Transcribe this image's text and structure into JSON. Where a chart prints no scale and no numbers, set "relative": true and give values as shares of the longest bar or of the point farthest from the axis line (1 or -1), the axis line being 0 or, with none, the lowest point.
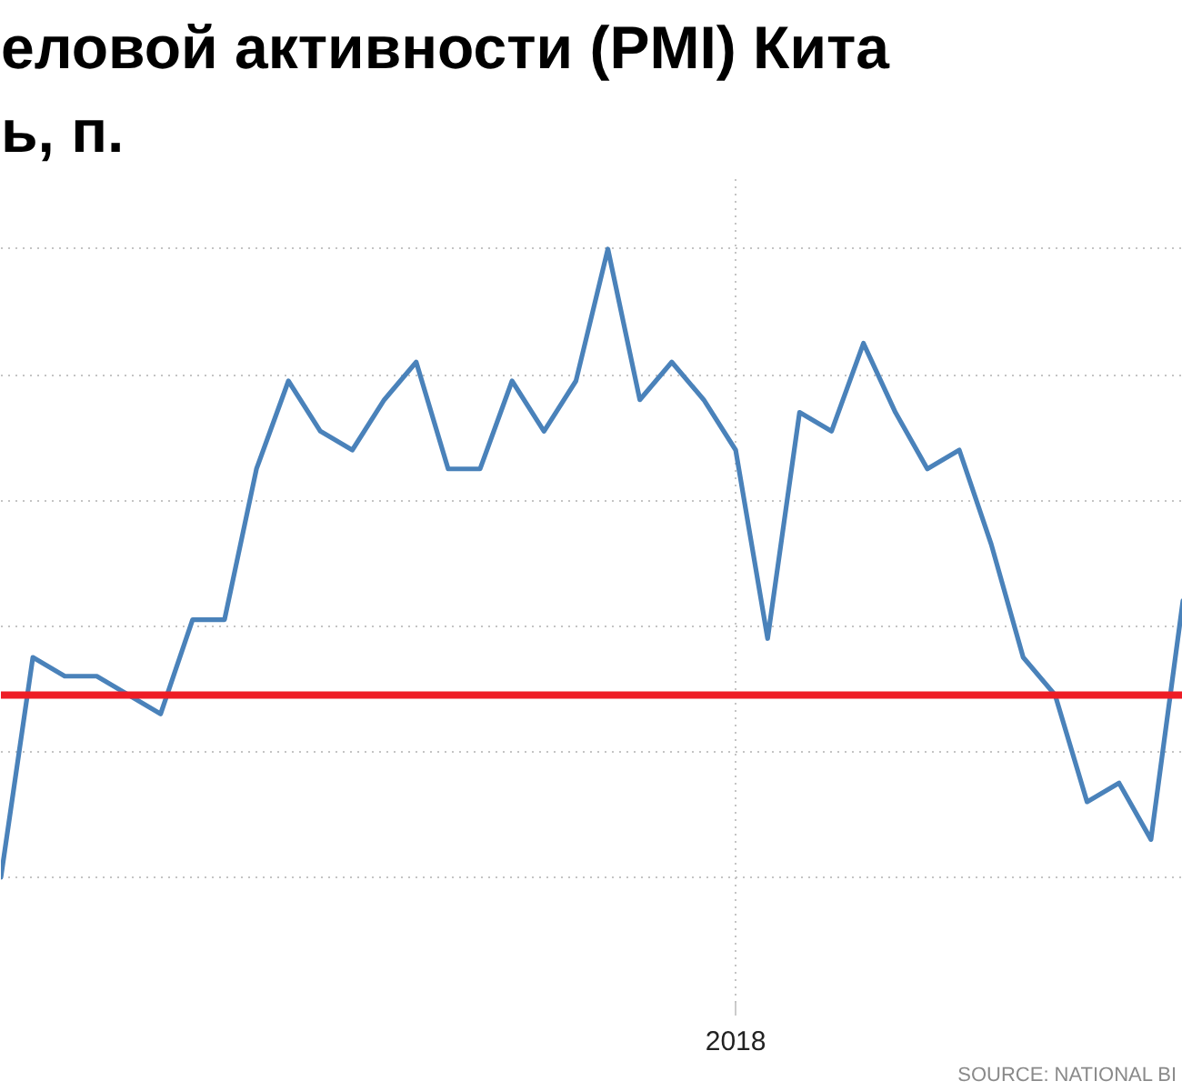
{
  "chart_data": {
    "type": "line",
    "title": "еловой активности (PMI) Кита\nь, п.",
    "categories": [
      null,
      null,
      null,
      null,
      null,
      null,
      null,
      null,
      null,
      null,
      null,
      null,
      null,
      null,
      null,
      null,
      null,
      null,
      null,
      null,
      null,
      null,
      null,
      null,
      null,
      null,
      null,
      null,
      null,
      null,
      null,
      null,
      null,
      null,
      null,
      null,
      null,
      null
    ],
    "values": [
      0,
      0.35,
      0.32,
      0.32,
      0.29,
      0.26,
      0.41,
      0.41,
      0.65,
      0.79,
      0.71,
      0.68,
      0.76,
      0.82,
      0.65,
      0.65,
      0.79,
      0.71,
      0.79,
      1,
      0.76,
      0.82,
      0.76,
      0.68,
      0.38,
      0.74,
      0.71,
      0.85,
      0.74,
      0.65,
      0.68,
      0.53,
      0.35,
      0.29,
      0.12,
      0.15,
      0.06,
      0.44
    ],
    "color": "#4a82ba",
    "relative": true,
    "grid": true,
    "ref_lines": [
      {
        "axis": "y",
        "value": 0.29,
        "color": "#ee1c25"
      }
    ],
    "annotations": [
      "2018",
      "SOURCE:  NATIONAL BI"
    ]
  }
}
